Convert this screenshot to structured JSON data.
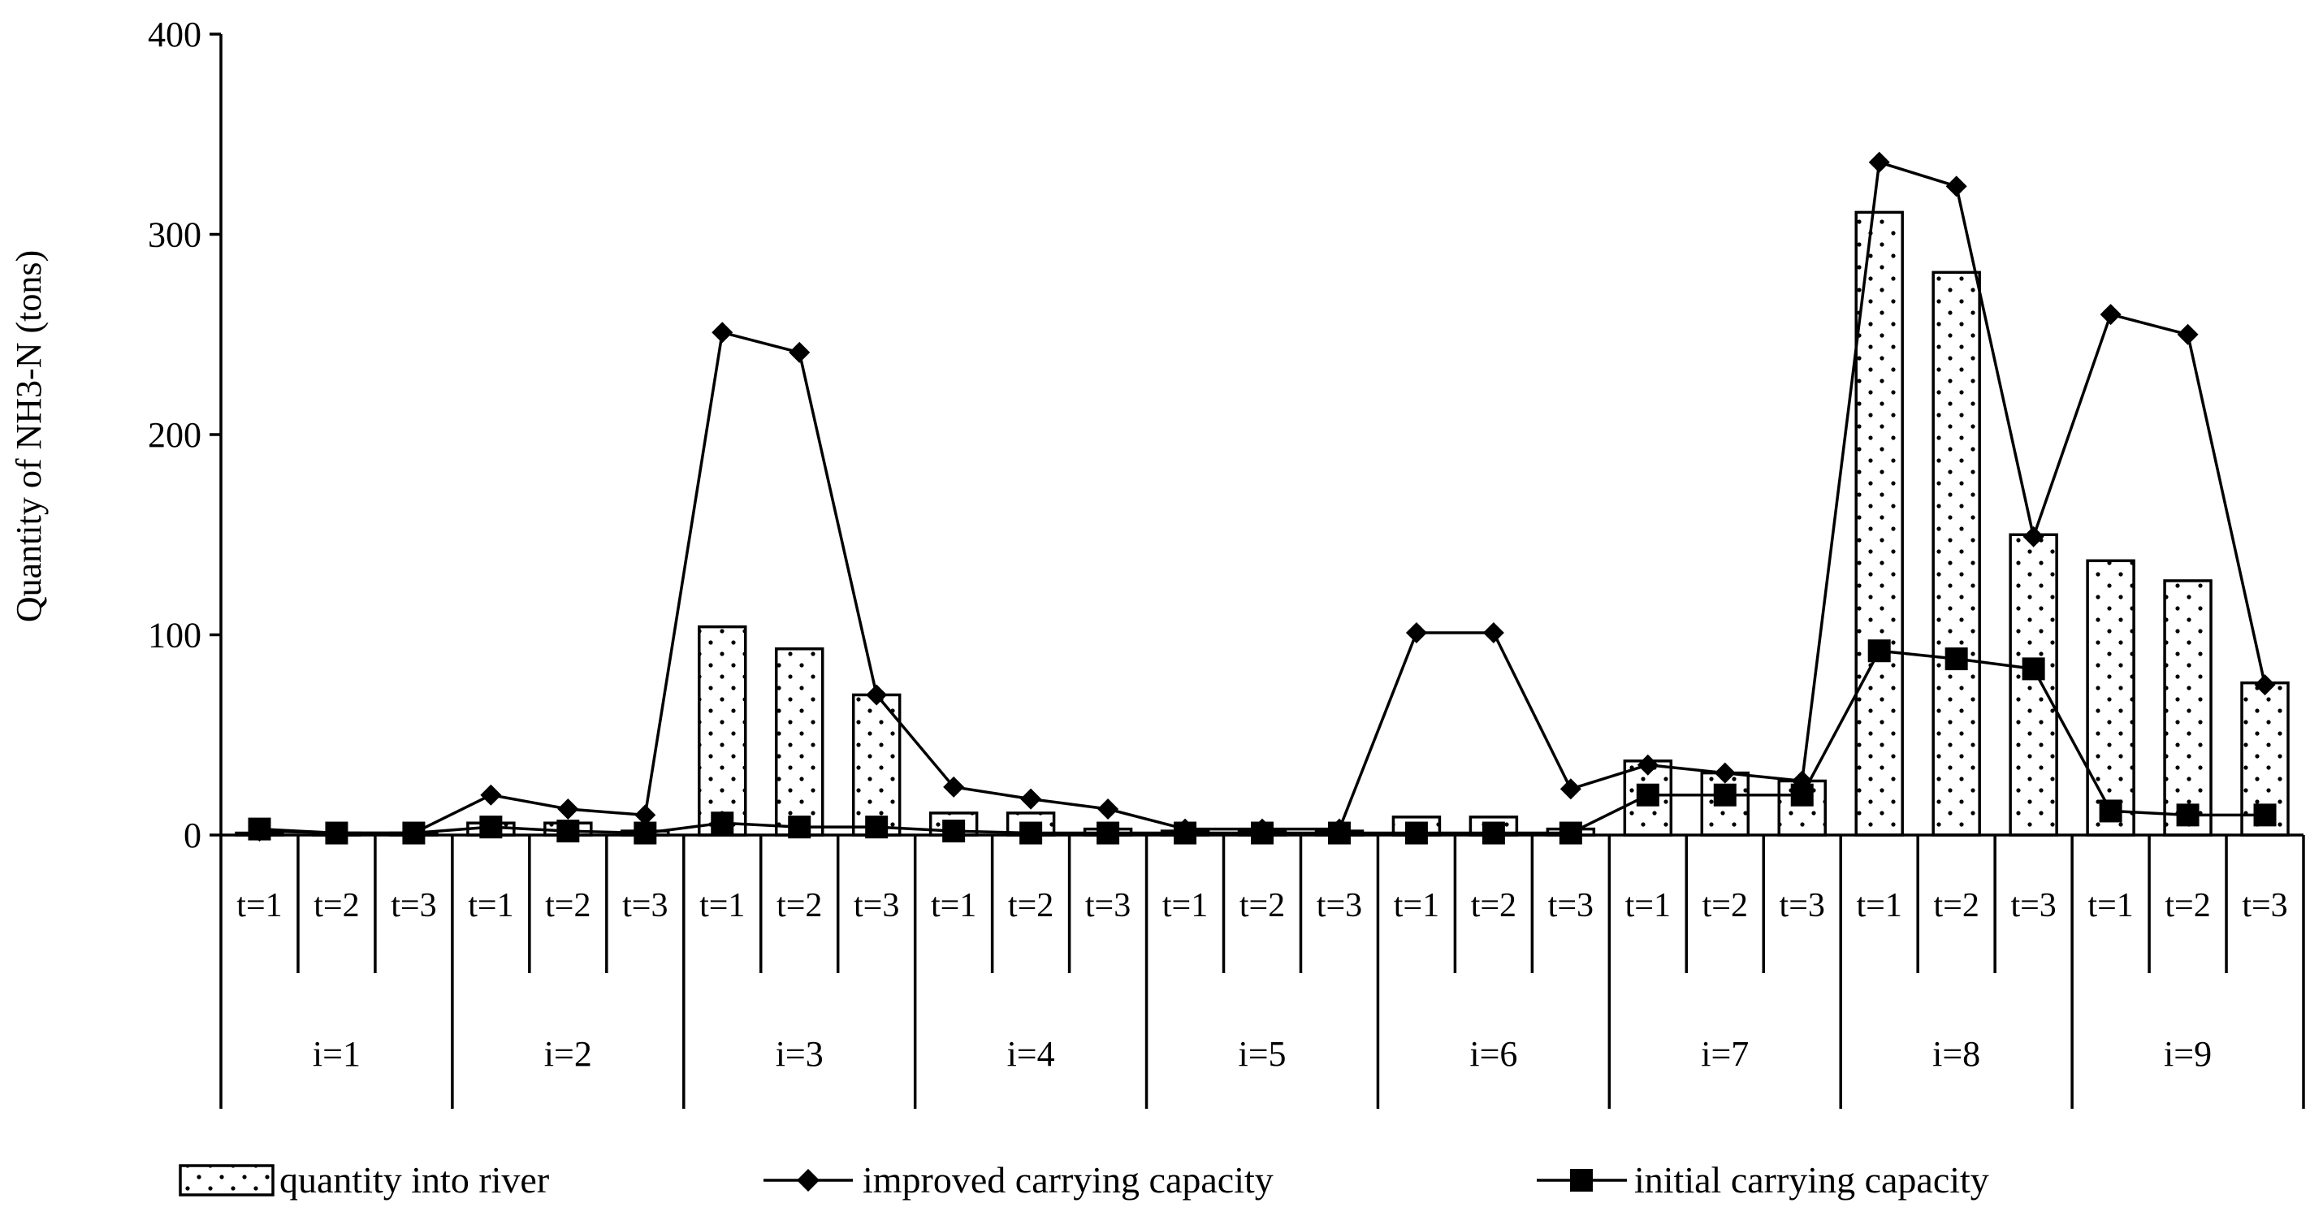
{
  "chart_data": {
    "type": "bar",
    "ylabel": "Quantity of NH3-N (tons)",
    "ylim": [
      0,
      400
    ],
    "y_ticks": [
      "0",
      "100",
      "200",
      "300",
      "400"
    ],
    "y_tick_values": [
      0,
      100,
      200,
      300,
      400
    ],
    "grid": false,
    "legend_position": "bottom",
    "groups": [
      "i=1",
      "i=2",
      "i=3",
      "i=4",
      "i=5",
      "i=6",
      "i=7",
      "i=8",
      "i=9"
    ],
    "subcategories": [
      "t=1",
      "t=2",
      "t=3"
    ],
    "series": [
      {
        "name": "quantity into river",
        "kind": "bar",
        "values": [
          1,
          1,
          1,
          6,
          6,
          2,
          104,
          93,
          70,
          11,
          11,
          3,
          2,
          2,
          2,
          9,
          9,
          3,
          37,
          31,
          27,
          311,
          281,
          150,
          137,
          127,
          76
        ]
      },
      {
        "name": "improved carrying capacity",
        "kind": "line",
        "marker": "diamond",
        "values": [
          2,
          1,
          1,
          20,
          13,
          10,
          251,
          241,
          70,
          24,
          18,
          13,
          3,
          3,
          3,
          101,
          101,
          23,
          35,
          31,
          27,
          336,
          324,
          149,
          260,
          250,
          75
        ]
      },
      {
        "name": "initial carrying capacity",
        "kind": "line",
        "marker": "square",
        "values": [
          3,
          1,
          1,
          4,
          2,
          1,
          6,
          4,
          4,
          2,
          1,
          1,
          1,
          1,
          1,
          1,
          1,
          1,
          20,
          20,
          20,
          92,
          88,
          83,
          12,
          10,
          10
        ]
      }
    ]
  }
}
